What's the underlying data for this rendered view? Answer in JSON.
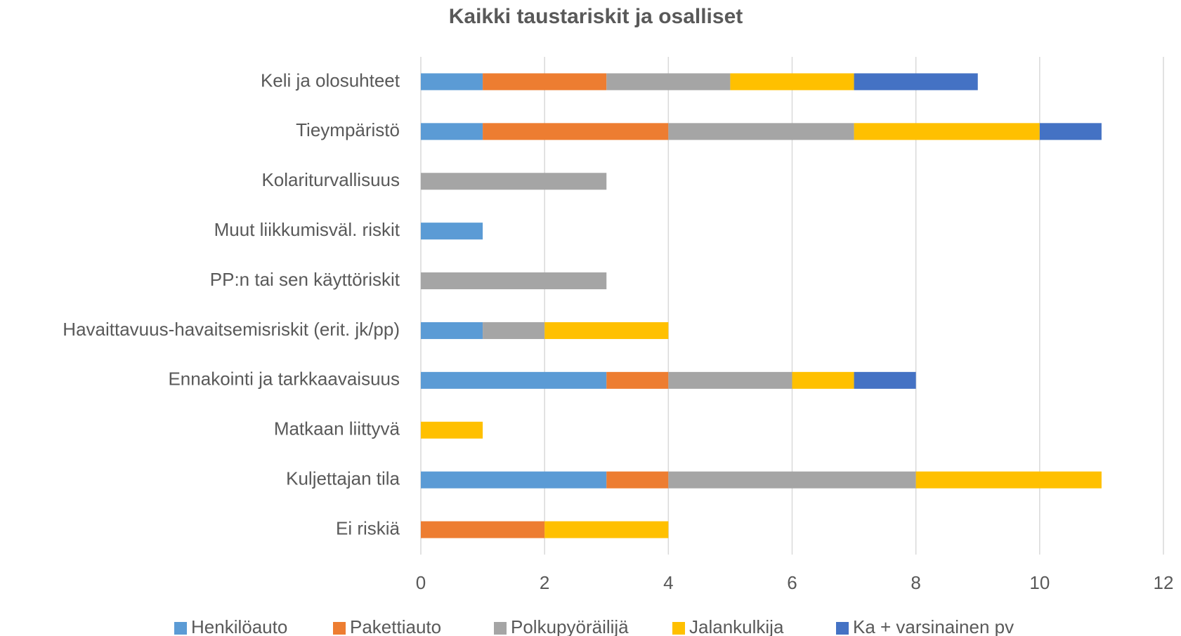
{
  "chart_data": {
    "type": "stacked-bar-horizontal",
    "title": "Kaikki taustariskit ja osalliset",
    "categories": [
      "Keli ja olosuhteet",
      "Tieympäristö",
      "Kolariturvallisuus",
      "Muut liikkumisväl. riskit",
      "PP:n tai sen käyttöriskit",
      "Havaittavuus-havaitsemisriskit (erit. jk/pp)",
      "Ennakointi ja tarkkaavaisuus",
      "Matkaan liittyvä",
      "Kuljettajan tila",
      "Ei riskiä"
    ],
    "series": [
      {
        "name": "Henkilöauto",
        "color": "#5b9bd5",
        "values": [
          1,
          1,
          0,
          1,
          0,
          1,
          3,
          0,
          3,
          0
        ]
      },
      {
        "name": "Pakettiauto",
        "color": "#ed7d31",
        "values": [
          2,
          3,
          0,
          0,
          0,
          0,
          1,
          0,
          1,
          2
        ]
      },
      {
        "name": "Polkupyöräilijä",
        "color": "#a5a5a5",
        "values": [
          2,
          3,
          3,
          0,
          3,
          1,
          2,
          0,
          4,
          0
        ]
      },
      {
        "name": "Jalankulkija",
        "color": "#ffc000",
        "values": [
          2,
          3,
          0,
          0,
          0,
          2,
          1,
          1,
          3,
          2
        ]
      },
      {
        "name": "Ka + varsinainen pv",
        "color": "#4472c4",
        "values": [
          2,
          1,
          0,
          0,
          0,
          0,
          1,
          0,
          0,
          0
        ]
      }
    ],
    "xlim": [
      0,
      12
    ],
    "xticks": [
      0,
      2,
      4,
      6,
      8,
      10,
      12
    ],
    "grid": true,
    "legend": "bottom"
  }
}
